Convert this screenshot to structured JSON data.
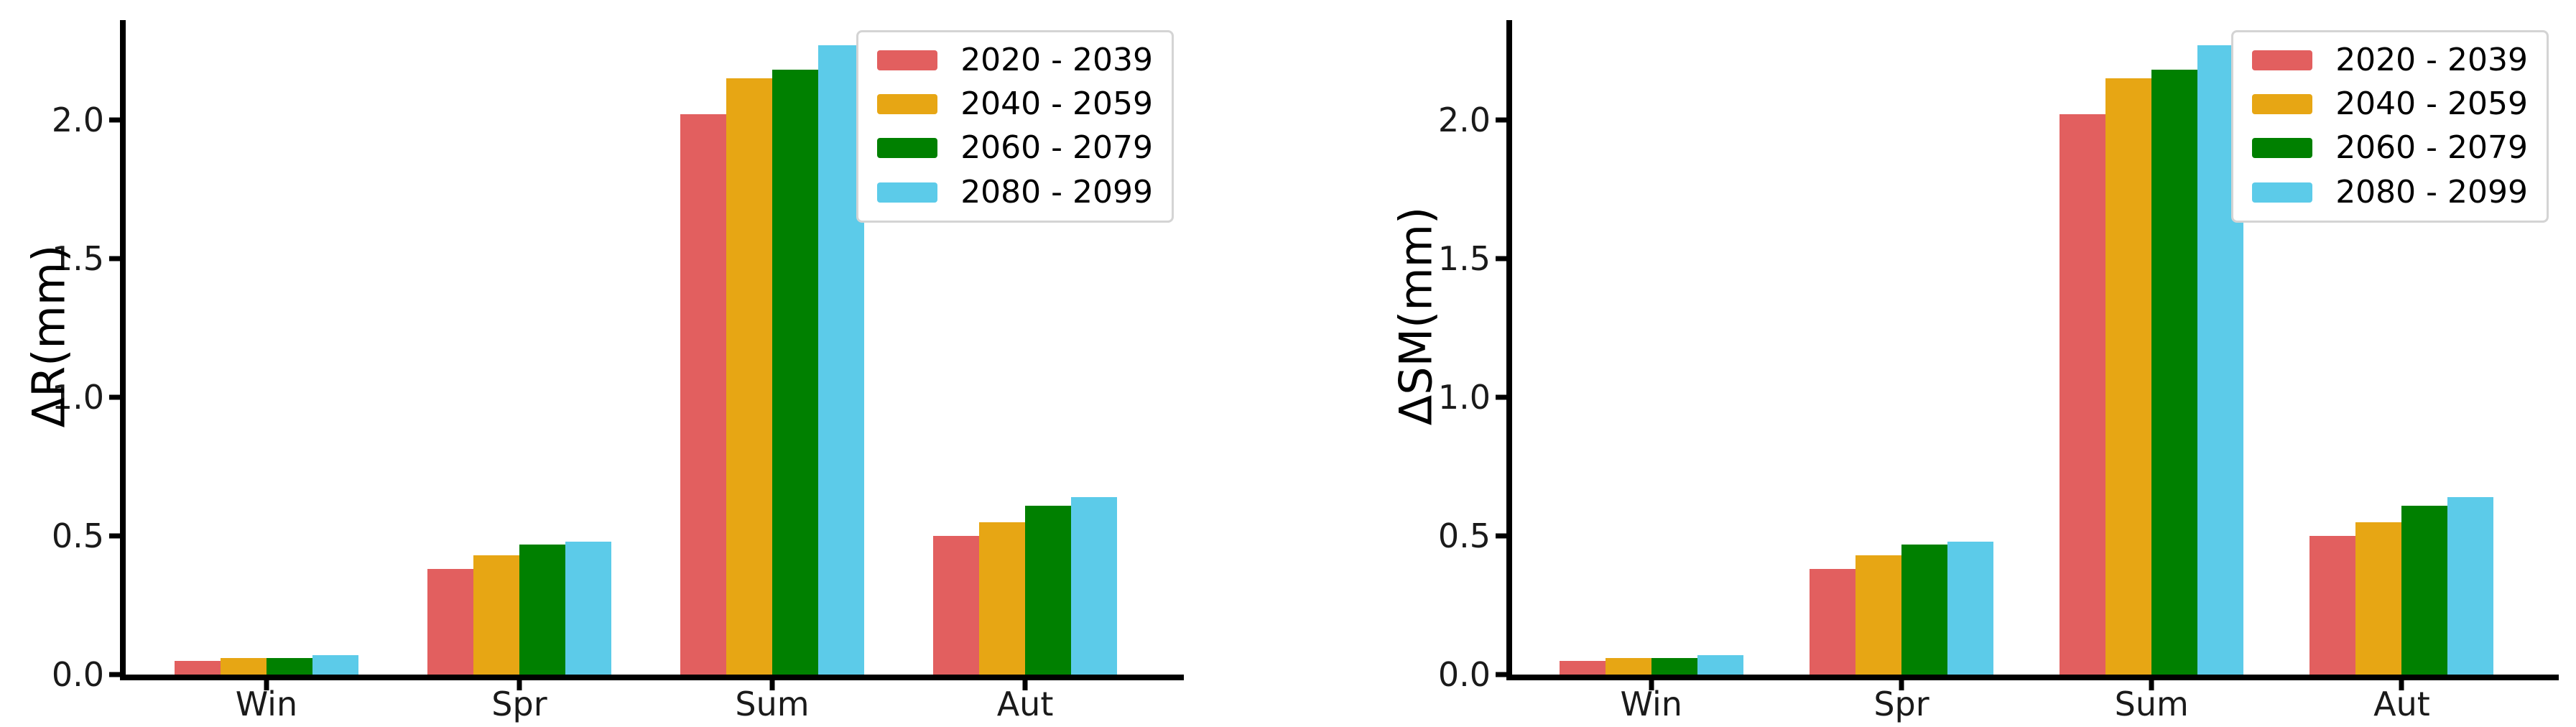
{
  "figure": {
    "background": "#ffffff",
    "text_color": "#000000",
    "axis_color": "#000000"
  },
  "chart_data": [
    {
      "type": "bar",
      "title": "",
      "xlabel": "",
      "ylabel": "ΔR(mm)",
      "categories": [
        "Win",
        "Spr",
        "Sum",
        "Aut"
      ],
      "series": [
        {
          "name": "2020 - 2039",
          "color": "#e25f5f",
          "values": [
            0.05,
            0.38,
            2.02,
            0.5
          ]
        },
        {
          "name": "2040 - 2059",
          "color": "#e7a614",
          "values": [
            0.06,
            0.43,
            2.15,
            0.55
          ]
        },
        {
          "name": "2060 - 2079",
          "color": "#008000",
          "values": [
            0.06,
            0.47,
            2.18,
            0.61
          ]
        },
        {
          "name": "2080 - 2099",
          "color": "#5ccbe9",
          "values": [
            0.07,
            0.48,
            2.27,
            0.64
          ]
        }
      ],
      "ytick_labels": [
        "0.0",
        "0.5",
        "1.0",
        "1.5",
        "2.0"
      ],
      "yticks": [
        0.0,
        0.5,
        1.0,
        1.5,
        2.0
      ],
      "ylim": [
        0,
        2.36
      ],
      "grid": false,
      "legend_position": "upper right"
    },
    {
      "type": "bar",
      "title": "",
      "xlabel": "",
      "ylabel": "ΔSM(mm)",
      "categories": [
        "Win",
        "Spr",
        "Sum",
        "Aut"
      ],
      "series": [
        {
          "name": "2020 - 2039",
          "color": "#e25f5f",
          "values": [
            0.05,
            0.38,
            2.02,
            0.5
          ]
        },
        {
          "name": "2040 - 2059",
          "color": "#e7a614",
          "values": [
            0.06,
            0.43,
            2.15,
            0.55
          ]
        },
        {
          "name": "2060 - 2079",
          "color": "#008000",
          "values": [
            0.06,
            0.47,
            2.18,
            0.61
          ]
        },
        {
          "name": "2080 - 2099",
          "color": "#5ccbe9",
          "values": [
            0.07,
            0.48,
            2.27,
            0.64
          ]
        }
      ],
      "ytick_labels": [
        "0.0",
        "0.5",
        "1.0",
        "1.5",
        "2.0"
      ],
      "yticks": [
        0.0,
        0.5,
        1.0,
        1.5,
        2.0
      ],
      "ylim": [
        0,
        2.36
      ],
      "grid": false,
      "legend_position": "upper right"
    }
  ]
}
